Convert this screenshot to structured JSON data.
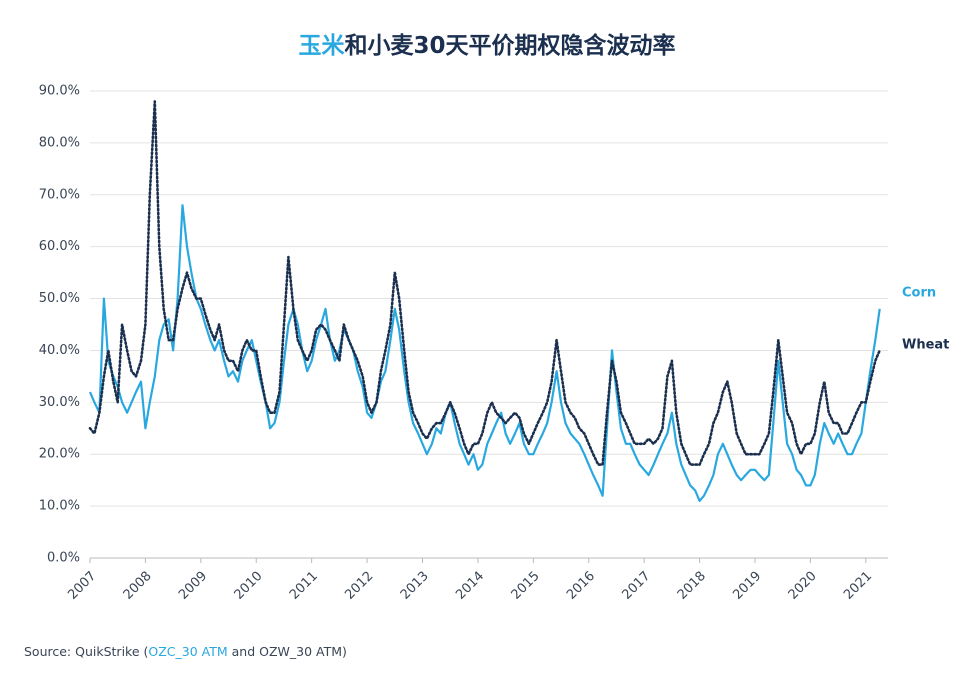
{
  "chart_data": {
    "type": "line",
    "title": {
      "highlight": "玉米",
      "rest": "和小麦30天平价期权隐含波动率"
    },
    "source": {
      "prefix": "Source: QuikStrike (",
      "highlight": "OZC_30 ATM",
      "suffix": " and OZW_30 ATM)"
    },
    "x": [
      2007.0,
      2007.08,
      2007.17,
      2007.25,
      2007.33,
      2007.42,
      2007.5,
      2007.58,
      2007.67,
      2007.75,
      2007.83,
      2007.92,
      2008.0,
      2008.08,
      2008.17,
      2008.25,
      2008.33,
      2008.42,
      2008.5,
      2008.58,
      2008.67,
      2008.75,
      2008.83,
      2008.92,
      2009.0,
      2009.08,
      2009.17,
      2009.25,
      2009.33,
      2009.42,
      2009.5,
      2009.58,
      2009.67,
      2009.75,
      2009.83,
      2009.92,
      2010.0,
      2010.08,
      2010.17,
      2010.25,
      2010.33,
      2010.42,
      2010.5,
      2010.58,
      2010.67,
      2010.75,
      2010.83,
      2010.92,
      2011.0,
      2011.08,
      2011.17,
      2011.25,
      2011.33,
      2011.42,
      2011.5,
      2011.58,
      2011.67,
      2011.75,
      2011.83,
      2011.92,
      2012.0,
      2012.08,
      2012.17,
      2012.25,
      2012.33,
      2012.42,
      2012.5,
      2012.58,
      2012.67,
      2012.75,
      2012.83,
      2012.92,
      2013.0,
      2013.08,
      2013.17,
      2013.25,
      2013.33,
      2013.42,
      2013.5,
      2013.58,
      2013.67,
      2013.75,
      2013.83,
      2013.92,
      2014.0,
      2014.08,
      2014.17,
      2014.25,
      2014.33,
      2014.42,
      2014.5,
      2014.58,
      2014.67,
      2014.75,
      2014.83,
      2014.92,
      2015.0,
      2015.08,
      2015.17,
      2015.25,
      2015.33,
      2015.42,
      2015.5,
      2015.58,
      2015.67,
      2015.75,
      2015.83,
      2015.92,
      2016.0,
      2016.08,
      2016.17,
      2016.25,
      2016.33,
      2016.42,
      2016.5,
      2016.58,
      2016.67,
      2016.75,
      2016.83,
      2016.92,
      2017.0,
      2017.08,
      2017.17,
      2017.25,
      2017.33,
      2017.42,
      2017.5,
      2017.58,
      2017.67,
      2017.75,
      2017.83,
      2017.92,
      2018.0,
      2018.08,
      2018.17,
      2018.25,
      2018.33,
      2018.42,
      2018.5,
      2018.58,
      2018.67,
      2018.75,
      2018.83,
      2018.92,
      2019.0,
      2019.08,
      2019.17,
      2019.25,
      2019.33,
      2019.42,
      2019.5,
      2019.58,
      2019.67,
      2019.75,
      2019.83,
      2019.92,
      2020.0,
      2020.08,
      2020.17,
      2020.25,
      2020.33,
      2020.42,
      2020.5,
      2020.58,
      2020.67,
      2020.75,
      2020.83,
      2020.92,
      2021.0,
      2021.08,
      2021.17,
      2021.25
    ],
    "series": [
      {
        "name": "Corn",
        "color": "#29a8e0",
        "dashed": false,
        "values": [
          32,
          30,
          28,
          50,
          38,
          35,
          33,
          30,
          28,
          30,
          32,
          34,
          25,
          30,
          35,
          42,
          45,
          46,
          40,
          50,
          68,
          60,
          55,
          50,
          48,
          45,
          42,
          40,
          42,
          38,
          35,
          36,
          34,
          38,
          40,
          42,
          38,
          34,
          30,
          25,
          26,
          30,
          38,
          45,
          48,
          45,
          40,
          36,
          38,
          42,
          45,
          48,
          42,
          38,
          40,
          44,
          42,
          40,
          36,
          33,
          28,
          27,
          30,
          34,
          36,
          42,
          48,
          44,
          36,
          30,
          26,
          24,
          22,
          20,
          22,
          25,
          24,
          28,
          30,
          26,
          22,
          20,
          18,
          20,
          17,
          18,
          22,
          24,
          26,
          28,
          24,
          22,
          24,
          26,
          22,
          20,
          20,
          22,
          24,
          26,
          30,
          36,
          30,
          26,
          24,
          23,
          22,
          20,
          18,
          16,
          14,
          12,
          25,
          40,
          32,
          25,
          22,
          22,
          20,
          18,
          17,
          16,
          18,
          20,
          22,
          24,
          28,
          22,
          18,
          16,
          14,
          13,
          11,
          12,
          14,
          16,
          20,
          22,
          20,
          18,
          16,
          15,
          16,
          17,
          17,
          16,
          15,
          16,
          26,
          38,
          30,
          22,
          20,
          17,
          16,
          14,
          14,
          16,
          22,
          26,
          24,
          22,
          24,
          22,
          20,
          20,
          22,
          24,
          30,
          36,
          42,
          48
        ]
      },
      {
        "name": "Wheat",
        "color": "#1b2f4f",
        "dashed": true,
        "values": [
          25,
          24,
          28,
          35,
          40,
          34,
          30,
          45,
          40,
          36,
          35,
          38,
          45,
          70,
          88,
          60,
          48,
          42,
          42,
          48,
          52,
          55,
          52,
          50,
          50,
          47,
          44,
          42,
          45,
          40,
          38,
          38,
          36,
          40,
          42,
          40,
          40,
          35,
          30,
          28,
          28,
          32,
          45,
          58,
          48,
          42,
          40,
          38,
          40,
          44,
          45,
          44,
          42,
          40,
          38,
          45,
          42,
          40,
          38,
          35,
          30,
          28,
          30,
          36,
          40,
          45,
          55,
          50,
          40,
          32,
          28,
          26,
          24,
          23,
          25,
          26,
          26,
          28,
          30,
          28,
          25,
          22,
          20,
          22,
          22,
          24,
          28,
          30,
          28,
          27,
          26,
          27,
          28,
          27,
          24,
          22,
          24,
          26,
          28,
          30,
          34,
          42,
          36,
          30,
          28,
          27,
          25,
          24,
          22,
          20,
          18,
          18,
          28,
          38,
          34,
          28,
          26,
          24,
          22,
          22,
          22,
          23,
          22,
          23,
          25,
          35,
          38,
          28,
          22,
          20,
          18,
          18,
          18,
          20,
          22,
          26,
          28,
          32,
          34,
          30,
          24,
          22,
          20,
          20,
          20,
          20,
          22,
          24,
          32,
          42,
          35,
          28,
          26,
          22,
          20,
          22,
          22,
          24,
          30,
          34,
          28,
          26,
          26,
          24,
          24,
          26,
          28,
          30,
          30,
          34,
          38,
          40
        ]
      }
    ],
    "xlim": [
      2007,
      2021.4
    ],
    "xticks": [
      2007,
      2008,
      2009,
      2010,
      2011,
      2012,
      2013,
      2014,
      2015,
      2016,
      2017,
      2018,
      2019,
      2020,
      2021
    ],
    "ylim": [
      0,
      90
    ],
    "yticks": [
      {
        "value": 0,
        "label": "0.0%"
      },
      {
        "value": 10,
        "label": "10.0%"
      },
      {
        "value": 20,
        "label": "20.0%"
      },
      {
        "value": 30,
        "label": "30.0%"
      },
      {
        "value": 40,
        "label": "40.0%"
      },
      {
        "value": 50,
        "label": "50.0%"
      },
      {
        "value": 60,
        "label": "60.0%"
      },
      {
        "value": 70,
        "label": "70.0%"
      },
      {
        "value": 80,
        "label": "80.0%"
      },
      {
        "value": 90,
        "label": "90.0%"
      }
    ],
    "grid": true,
    "legend": "right"
  }
}
